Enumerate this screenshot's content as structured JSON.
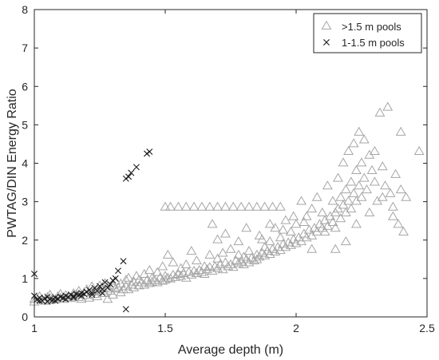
{
  "chart_data": {
    "type": "scatter",
    "xlabel": "Average depth (m)",
    "ylabel": "PWTAG/DIN Energy Ratio",
    "xlim": [
      1,
      2.5
    ],
    "ylim": [
      0,
      8
    ],
    "xticks": [
      1,
      1.5,
      2,
      2.5
    ],
    "xtick_labels": [
      "1",
      "1.5",
      "2",
      "2.5"
    ],
    "yticks": [
      0,
      1,
      2,
      3,
      4,
      5,
      6,
      7,
      8
    ],
    "ytick_labels": [
      "0",
      "1",
      "2",
      "3",
      "4",
      "5",
      "6",
      "7",
      "8"
    ],
    "grid": false,
    "legend_position": "top-right",
    "series": [
      {
        "name": ">1.5 m pools",
        "marker": "triangle",
        "color": "#a6a6a6",
        "points": [
          [
            1.0,
            0.45
          ],
          [
            1.0,
            0.38
          ],
          [
            1.02,
            0.52
          ],
          [
            1.03,
            0.44
          ],
          [
            1.04,
            0.4
          ],
          [
            1.05,
            0.5
          ],
          [
            1.06,
            0.42
          ],
          [
            1.06,
            0.56
          ],
          [
            1.07,
            0.47
          ],
          [
            1.08,
            0.44
          ],
          [
            1.09,
            0.52
          ],
          [
            1.1,
            0.48
          ],
          [
            1.1,
            0.58
          ],
          [
            1.11,
            0.45
          ],
          [
            1.12,
            0.55
          ],
          [
            1.13,
            0.5
          ],
          [
            1.14,
            0.47
          ],
          [
            1.15,
            0.6
          ],
          [
            1.15,
            0.52
          ],
          [
            1.16,
            0.57
          ],
          [
            1.17,
            0.5
          ],
          [
            1.17,
            0.66
          ],
          [
            1.18,
            0.45
          ],
          [
            1.19,
            0.62
          ],
          [
            1.2,
            0.55
          ],
          [
            1.2,
            0.7
          ],
          [
            1.21,
            0.48
          ],
          [
            1.22,
            0.64
          ],
          [
            1.22,
            0.78
          ],
          [
            1.23,
            0.58
          ],
          [
            1.24,
            0.7
          ],
          [
            1.24,
            0.52
          ],
          [
            1.25,
            0.66
          ],
          [
            1.25,
            0.8
          ],
          [
            1.26,
            0.74
          ],
          [
            1.27,
            0.6
          ],
          [
            1.27,
            0.86
          ],
          [
            1.28,
            0.45
          ],
          [
            1.28,
            0.72
          ],
          [
            1.29,
            0.66
          ],
          [
            1.3,
            0.8
          ],
          [
            1.3,
            0.56
          ],
          [
            1.31,
            0.72
          ],
          [
            1.31,
            0.92
          ],
          [
            1.32,
            0.75
          ],
          [
            1.33,
            0.62
          ],
          [
            1.33,
            0.85
          ],
          [
            1.34,
            0.7
          ],
          [
            1.35,
            0.78
          ],
          [
            1.35,
            0.95
          ],
          [
            1.36,
            0.7
          ],
          [
            1.36,
            1.0
          ],
          [
            1.37,
            0.82
          ],
          [
            1.38,
            0.75
          ],
          [
            1.38,
            0.9
          ],
          [
            1.39,
            1.05
          ],
          [
            1.4,
            0.8
          ],
          [
            1.4,
            0.95
          ],
          [
            1.41,
            0.88
          ],
          [
            1.42,
            0.82
          ],
          [
            1.42,
            1.1
          ],
          [
            1.43,
            0.93
          ],
          [
            1.44,
            0.86
          ],
          [
            1.44,
            1.2
          ],
          [
            1.45,
            0.9
          ],
          [
            1.45,
            1.0
          ],
          [
            1.46,
            0.95
          ],
          [
            1.47,
            0.88
          ],
          [
            1.47,
            1.15
          ],
          [
            1.48,
            1.0
          ],
          [
            1.49,
            0.92
          ],
          [
            1.49,
            1.3
          ],
          [
            1.5,
            0.95
          ],
          [
            1.5,
            1.05
          ],
          [
            1.51,
            1.0
          ],
          [
            1.51,
            1.6
          ],
          [
            1.52,
            0.98
          ],
          [
            1.53,
            1.08
          ],
          [
            1.53,
            1.4
          ],
          [
            1.54,
            1.02
          ],
          [
            1.55,
            1.1
          ],
          [
            1.56,
            1.05
          ],
          [
            1.56,
            1.25
          ],
          [
            1.57,
            1.12
          ],
          [
            1.58,
            1.0
          ],
          [
            1.58,
            1.35
          ],
          [
            1.59,
            1.15
          ],
          [
            1.6,
            1.08
          ],
          [
            1.6,
            1.7
          ],
          [
            1.61,
            1.18
          ],
          [
            1.62,
            1.12
          ],
          [
            1.62,
            1.45
          ],
          [
            1.63,
            1.2
          ],
          [
            1.64,
            1.15
          ],
          [
            1.65,
            1.3
          ],
          [
            1.65,
            1.1
          ],
          [
            1.66,
            1.22
          ],
          [
            1.67,
            1.28
          ],
          [
            1.67,
            1.6
          ],
          [
            1.68,
            1.18
          ],
          [
            1.69,
            1.3
          ],
          [
            1.7,
            1.25
          ],
          [
            1.7,
            1.5
          ],
          [
            1.71,
            1.35
          ],
          [
            1.72,
            1.22
          ],
          [
            1.72,
            1.65
          ],
          [
            1.73,
            1.4
          ],
          [
            1.74,
            1.3
          ],
          [
            1.75,
            1.35
          ],
          [
            1.75,
            1.75
          ],
          [
            1.76,
            1.28
          ],
          [
            1.77,
            1.45
          ],
          [
            1.78,
            1.38
          ],
          [
            1.78,
            1.6
          ],
          [
            1.79,
            1.42
          ],
          [
            1.8,
            1.35
          ],
          [
            1.8,
            1.55
          ],
          [
            1.81,
            1.48
          ],
          [
            1.82,
            1.4
          ],
          [
            1.82,
            1.7
          ],
          [
            1.83,
            1.52
          ],
          [
            1.84,
            1.45
          ],
          [
            1.85,
            1.6
          ],
          [
            1.85,
            1.48
          ],
          [
            1.86,
            1.55
          ],
          [
            1.86,
            2.1
          ],
          [
            1.87,
            1.65
          ],
          [
            1.88,
            1.58
          ],
          [
            1.88,
            1.8
          ],
          [
            1.89,
            1.7
          ],
          [
            1.9,
            1.62
          ],
          [
            1.9,
            1.95
          ],
          [
            1.91,
            1.75
          ],
          [
            1.92,
            1.68
          ],
          [
            1.92,
            2.3
          ],
          [
            1.93,
            1.8
          ],
          [
            1.94,
            1.72
          ],
          [
            1.94,
            2.05
          ],
          [
            1.95,
            1.88
          ],
          [
            1.96,
            1.8
          ],
          [
            1.96,
            2.5
          ],
          [
            1.97,
            1.92
          ],
          [
            1.98,
            1.85
          ],
          [
            1.98,
            2.2
          ],
          [
            1.99,
            2.0
          ],
          [
            2.0,
            1.9
          ],
          [
            2.0,
            2.4
          ],
          [
            2.01,
            2.05
          ],
          [
            2.02,
            1.95
          ],
          [
            2.02,
            3.0
          ],
          [
            2.03,
            2.15
          ],
          [
            2.04,
            2.05
          ],
          [
            2.04,
            2.6
          ],
          [
            2.05,
            2.25
          ],
          [
            2.06,
            2.1
          ],
          [
            2.06,
            2.8
          ],
          [
            2.07,
            2.3
          ],
          [
            2.08,
            2.2
          ],
          [
            2.08,
            3.1
          ],
          [
            2.09,
            2.4
          ],
          [
            2.1,
            2.3
          ],
          [
            2.1,
            2.7
          ],
          [
            2.11,
            2.5
          ],
          [
            2.12,
            2.35
          ],
          [
            2.12,
            3.4
          ],
          [
            2.13,
            2.6
          ],
          [
            2.14,
            2.45
          ],
          [
            2.14,
            3.0
          ],
          [
            2.15,
            2.7
          ],
          [
            2.15,
            2.3
          ],
          [
            2.16,
            2.8
          ],
          [
            2.16,
            3.6
          ],
          [
            2.17,
            2.55
          ],
          [
            2.17,
            3.1
          ],
          [
            2.18,
            2.9
          ],
          [
            2.18,
            4.0
          ],
          [
            2.19,
            2.7
          ],
          [
            2.19,
            3.3
          ],
          [
            2.2,
            3.0
          ],
          [
            2.2,
            4.3
          ],
          [
            2.21,
            2.8
          ],
          [
            2.21,
            3.5
          ],
          [
            2.22,
            3.2
          ],
          [
            2.22,
            4.5
          ],
          [
            2.23,
            3.0
          ],
          [
            2.23,
            3.8
          ],
          [
            2.24,
            3.4
          ],
          [
            2.24,
            4.8
          ],
          [
            2.25,
            3.1
          ],
          [
            2.25,
            4.0
          ],
          [
            2.26,
            3.6
          ],
          [
            2.26,
            4.6
          ],
          [
            2.27,
            3.3
          ],
          [
            2.28,
            4.2
          ],
          [
            2.29,
            3.8
          ],
          [
            2.3,
            3.5
          ],
          [
            2.3,
            4.3
          ],
          [
            2.31,
            3.0
          ],
          [
            2.32,
            5.3
          ],
          [
            2.33,
            3.9
          ],
          [
            2.34,
            3.4
          ],
          [
            2.35,
            5.45
          ],
          [
            2.36,
            3.2
          ],
          [
            2.37,
            2.85
          ],
          [
            2.38,
            3.7
          ],
          [
            2.39,
            2.4
          ],
          [
            2.4,
            3.3
          ],
          [
            2.4,
            4.8
          ],
          [
            2.42,
            3.1
          ],
          [
            2.47,
            4.3
          ],
          [
            1.5,
            2.85
          ],
          [
            1.52,
            2.85
          ],
          [
            1.55,
            2.85
          ],
          [
            1.58,
            2.85
          ],
          [
            1.61,
            2.85
          ],
          [
            1.64,
            2.85
          ],
          [
            1.67,
            2.85
          ],
          [
            1.7,
            2.85
          ],
          [
            1.73,
            2.85
          ],
          [
            1.76,
            2.85
          ],
          [
            1.79,
            2.85
          ],
          [
            1.82,
            2.85
          ],
          [
            1.85,
            2.85
          ],
          [
            1.88,
            2.85
          ],
          [
            1.91,
            2.85
          ],
          [
            1.94,
            2.85
          ],
          [
            1.68,
            2.4
          ],
          [
            1.7,
            2.0
          ],
          [
            1.73,
            2.15
          ],
          [
            1.78,
            1.95
          ],
          [
            1.81,
            2.3
          ],
          [
            1.87,
            2.0
          ],
          [
            1.9,
            2.4
          ],
          [
            1.95,
            2.25
          ],
          [
            1.99,
            2.6
          ],
          [
            2.03,
            2.45
          ],
          [
            2.06,
            1.75
          ],
          [
            2.11,
            2.2
          ],
          [
            2.15,
            1.75
          ],
          [
            2.19,
            1.95
          ],
          [
            2.23,
            2.4
          ],
          [
            2.28,
            2.7
          ],
          [
            2.33,
            3.1
          ],
          [
            2.37,
            2.6
          ],
          [
            2.41,
            2.2
          ]
        ]
      },
      {
        "name": "1-1.5 m pools",
        "marker": "x",
        "color": "#1a1a1a",
        "points": [
          [
            1.0,
            1.12
          ],
          [
            1.0,
            0.55
          ],
          [
            1.01,
            0.45
          ],
          [
            1.02,
            0.5
          ],
          [
            1.03,
            0.42
          ],
          [
            1.04,
            0.48
          ],
          [
            1.05,
            0.4
          ],
          [
            1.06,
            0.46
          ],
          [
            1.07,
            0.44
          ],
          [
            1.08,
            0.5
          ],
          [
            1.09,
            0.47
          ],
          [
            1.1,
            0.52
          ],
          [
            1.11,
            0.49
          ],
          [
            1.12,
            0.55
          ],
          [
            1.13,
            0.52
          ],
          [
            1.14,
            0.58
          ],
          [
            1.15,
            0.54
          ],
          [
            1.16,
            0.6
          ],
          [
            1.17,
            0.57
          ],
          [
            1.18,
            0.62
          ],
          [
            1.19,
            0.6
          ],
          [
            1.2,
            0.65
          ],
          [
            1.21,
            0.7
          ],
          [
            1.22,
            0.63
          ],
          [
            1.23,
            0.75
          ],
          [
            1.24,
            0.68
          ],
          [
            1.25,
            0.8
          ],
          [
            1.26,
            0.72
          ],
          [
            1.27,
            0.9
          ],
          [
            1.28,
            0.76
          ],
          [
            1.29,
            0.85
          ],
          [
            1.3,
            0.95
          ],
          [
            1.31,
            1.0
          ],
          [
            1.32,
            1.2
          ],
          [
            1.34,
            1.45
          ],
          [
            1.35,
            0.2
          ],
          [
            1.35,
            3.6
          ],
          [
            1.36,
            3.65
          ],
          [
            1.37,
            3.75
          ],
          [
            1.39,
            3.9
          ],
          [
            1.43,
            4.25
          ],
          [
            1.44,
            4.3
          ],
          [
            1.02,
            0.42
          ],
          [
            1.05,
            0.52
          ],
          [
            1.08,
            0.42
          ],
          [
            1.12,
            0.46
          ],
          [
            1.15,
            0.5
          ],
          [
            1.18,
            0.55
          ],
          [
            1.22,
            0.58
          ],
          [
            1.26,
            0.62
          ]
        ]
      }
    ]
  }
}
